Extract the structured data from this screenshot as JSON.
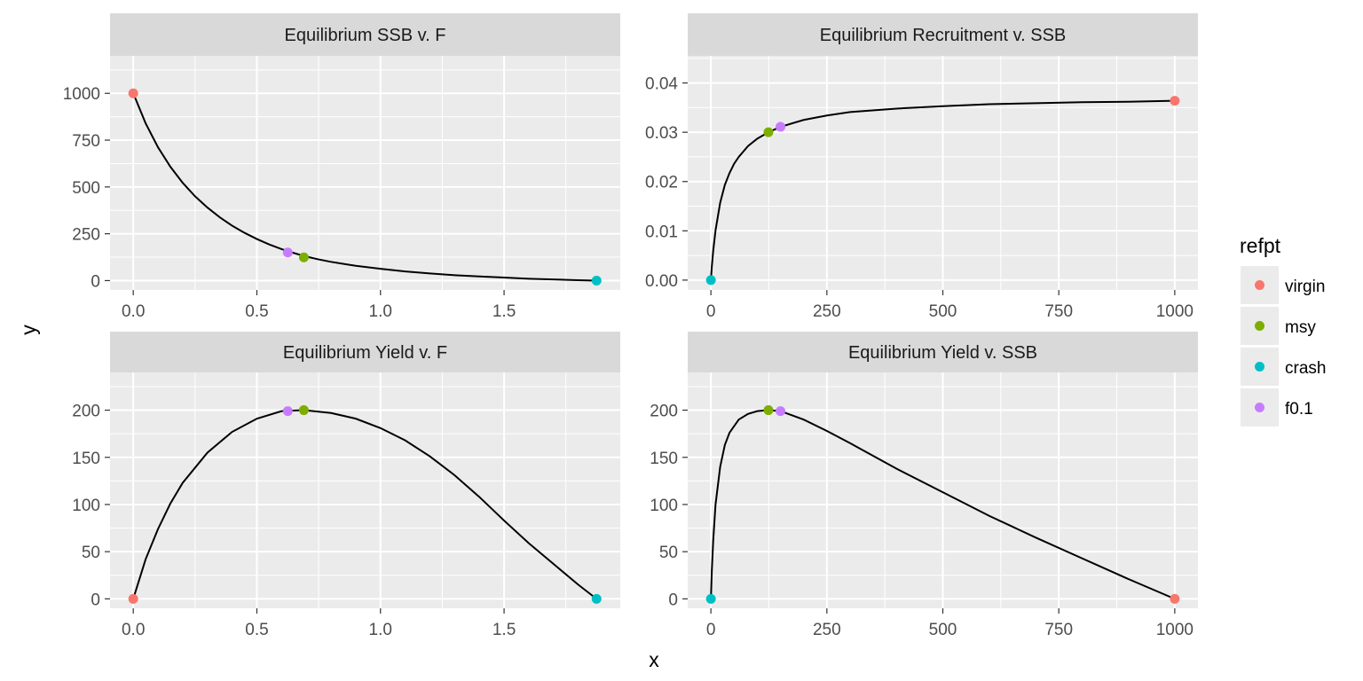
{
  "chart_data": {
    "type": "line",
    "xlabel": "x",
    "ylabel": "y",
    "legend": {
      "title": "refpt",
      "position": "right",
      "entries": [
        {
          "name": "virgin",
          "color": "#F8766D"
        },
        {
          "name": "msy",
          "color": "#7CAE00"
        },
        {
          "name": "crash",
          "color": "#00BFC4"
        },
        {
          "name": "f0.1",
          "color": "#C77CFF"
        }
      ]
    },
    "panels": [
      {
        "title": "Equilibrium SSB v. F",
        "xlim": [
          -0.094,
          1.97
        ],
        "ylim": [
          -50,
          1200
        ],
        "xticks": [
          0,
          0.25,
          0.5,
          0.75,
          1,
          1.25,
          1.5,
          1.75
        ],
        "xtick_labels": [
          "0.0",
          "",
          "0.5",
          "",
          "1.0",
          "",
          "1.5",
          ""
        ],
        "yticks": [
          0,
          125,
          250,
          375,
          500,
          625,
          750,
          875,
          1000,
          1125
        ],
        "ytick_labels": [
          "0",
          "",
          "250",
          "",
          "500",
          "",
          "750",
          "",
          "1000",
          ""
        ],
        "curve": {
          "x": [
            0,
            0.05,
            0.1,
            0.15,
            0.2,
            0.25,
            0.3,
            0.35,
            0.4,
            0.45,
            0.5,
            0.55,
            0.6,
            0.65,
            0.7,
            0.75,
            0.8,
            0.9,
            1.0,
            1.1,
            1.2,
            1.3,
            1.4,
            1.5,
            1.6,
            1.7,
            1.8,
            1.874
          ],
          "y": [
            1000,
            840,
            712,
            608,
            522,
            450,
            390,
            338,
            293,
            255,
            222,
            193,
            168,
            147,
            128,
            113,
            100,
            79,
            63,
            49,
            38,
            29,
            22,
            16,
            10,
            6,
            2,
            0
          ]
        },
        "points": [
          {
            "refpt": "virgin",
            "x": 0,
            "y": 1000
          },
          {
            "refpt": "msy",
            "x": 0.69,
            "y": 124
          },
          {
            "refpt": "crash",
            "x": 1.874,
            "y": 0
          },
          {
            "refpt": "f0.1",
            "x": 0.625,
            "y": 150
          }
        ]
      },
      {
        "title": "Equilibrium Recruitment v. SSB",
        "xlim": [
          -50,
          1050
        ],
        "ylim": [
          -0.002,
          0.0455
        ],
        "xticks": [
          0,
          125,
          250,
          375,
          500,
          625,
          750,
          875,
          1000
        ],
        "xtick_labels": [
          "0",
          "",
          "250",
          "",
          "500",
          "",
          "750",
          "",
          "1000"
        ],
        "yticks": [
          0,
          0.005,
          0.01,
          0.015,
          0.02,
          0.025,
          0.03,
          0.035,
          0.04,
          0.045
        ],
        "ytick_labels": [
          "0.00",
          "",
          "0.01",
          "",
          "0.02",
          "",
          "0.03",
          "",
          "0.04",
          ""
        ],
        "curve": {
          "x": [
            0,
            2,
            5,
            10,
            20,
            30,
            40,
            50,
            60,
            80,
            100,
            124,
            150,
            200,
            250,
            300,
            400,
            500,
            600,
            700,
            800,
            900,
            1000
          ],
          "y": [
            0,
            0.00275,
            0.00597,
            0.0101,
            0.0157,
            0.0193,
            0.0217,
            0.0236,
            0.025,
            0.0272,
            0.0287,
            0.03,
            0.0311,
            0.0325,
            0.0334,
            0.0341,
            0.0348,
            0.0353,
            0.0357,
            0.0359,
            0.0361,
            0.0362,
            0.0364
          ]
        },
        "points": [
          {
            "refpt": "virgin",
            "x": 1000,
            "y": 0.0364
          },
          {
            "refpt": "msy",
            "x": 124,
            "y": 0.03
          },
          {
            "refpt": "crash",
            "x": 0,
            "y": 0
          },
          {
            "refpt": "f0.1",
            "x": 150,
            "y": 0.0311
          }
        ]
      },
      {
        "title": "Equilibrium Yield v. F",
        "xlim": [
          -0.094,
          1.97
        ],
        "ylim": [
          -10,
          240
        ],
        "xticks": [
          0,
          0.25,
          0.5,
          0.75,
          1,
          1.25,
          1.5,
          1.75
        ],
        "xtick_labels": [
          "0.0",
          "",
          "0.5",
          "",
          "1.0",
          "",
          "1.5",
          ""
        ],
        "yticks": [
          0,
          25,
          50,
          75,
          100,
          125,
          150,
          175,
          200,
          225
        ],
        "ytick_labels": [
          "0",
          "",
          "50",
          "",
          "100",
          "",
          "150",
          "",
          "200",
          ""
        ],
        "curve": {
          "x": [
            0,
            0.05,
            0.1,
            0.15,
            0.2,
            0.3,
            0.4,
            0.5,
            0.6,
            0.69,
            0.8,
            0.9,
            1.0,
            1.1,
            1.2,
            1.3,
            1.4,
            1.5,
            1.6,
            1.7,
            1.8,
            1.874
          ],
          "y": [
            0,
            42,
            74,
            101,
            123,
            155,
            177,
            191,
            199,
            200,
            197,
            191,
            181,
            168,
            151,
            131,
            108,
            83,
            59,
            37,
            15,
            0
          ]
        },
        "points": [
          {
            "refpt": "virgin",
            "x": 0,
            "y": 0
          },
          {
            "refpt": "msy",
            "x": 0.69,
            "y": 200
          },
          {
            "refpt": "crash",
            "x": 1.874,
            "y": 0
          },
          {
            "refpt": "f0.1",
            "x": 0.625,
            "y": 199
          }
        ]
      },
      {
        "title": "Equilibrium Yield v. SSB",
        "xlim": [
          -50,
          1050
        ],
        "ylim": [
          -10,
          240
        ],
        "xticks": [
          0,
          125,
          250,
          375,
          500,
          625,
          750,
          875,
          1000
        ],
        "xtick_labels": [
          "0",
          "",
          "250",
          "",
          "500",
          "",
          "750",
          "",
          "1000"
        ],
        "yticks": [
          0,
          25,
          50,
          75,
          100,
          125,
          150,
          175,
          200,
          225
        ],
        "ytick_labels": [
          "0",
          "",
          "50",
          "",
          "100",
          "",
          "150",
          "",
          "200",
          ""
        ],
        "curve": {
          "x": [
            0,
            2,
            5,
            10,
            20,
            30,
            40,
            60,
            80,
            100,
            124,
            150,
            200,
            250,
            300,
            400,
            500,
            600,
            700,
            800,
            900,
            1000
          ],
          "y": [
            0,
            30,
            62,
            100,
            140,
            163,
            176,
            190,
            196,
            199,
            200,
            199,
            190,
            178,
            165,
            138,
            113,
            88,
            65,
            43,
            21,
            0
          ]
        },
        "points": [
          {
            "refpt": "virgin",
            "x": 1000,
            "y": 0
          },
          {
            "refpt": "msy",
            "x": 124,
            "y": 200
          },
          {
            "refpt": "crash",
            "x": 0,
            "y": 0
          },
          {
            "refpt": "f0.1",
            "x": 150,
            "y": 199
          }
        ]
      }
    ]
  }
}
